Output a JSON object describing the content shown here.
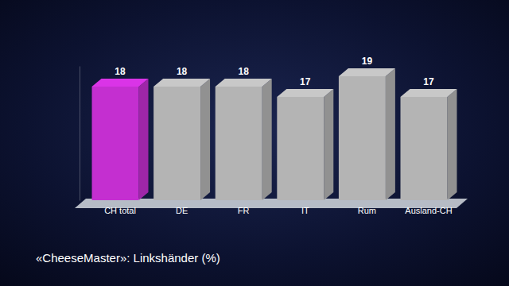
{
  "chart_data": {
    "type": "bar",
    "title": "«CheeseMaster»: Linkshänder (%)",
    "categories": [
      "CH total",
      "DE",
      "FR",
      "IT",
      "Rum",
      "Ausland-CH"
    ],
    "values": [
      18,
      18,
      18,
      17,
      19,
      17
    ],
    "colors": [
      "#c42fd0",
      "#b4b4b4",
      "#b4b4b4",
      "#b4b4b4",
      "#b4b4b4",
      "#b4b4b4"
    ],
    "ylim": [
      7,
      20
    ],
    "data_labels": true,
    "tick_labels": "x"
  }
}
